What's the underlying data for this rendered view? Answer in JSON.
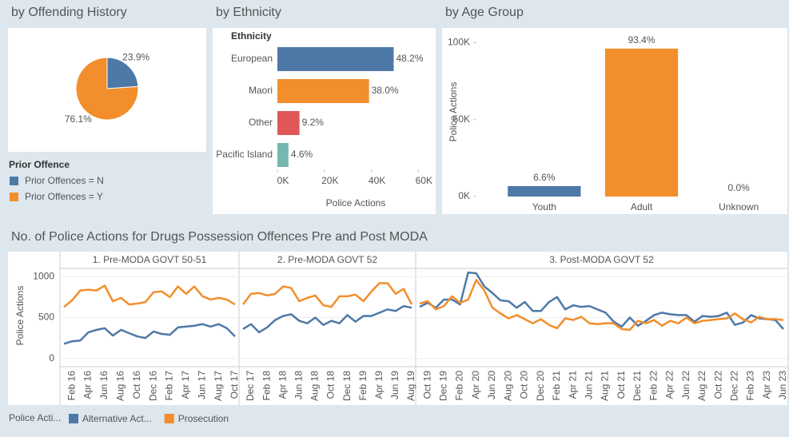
{
  "chart_data": [
    {
      "type": "pie",
      "title": "by Offending History",
      "legend_title": "Prior Offence",
      "categories": [
        "Prior Offences = N",
        "Prior Offences = Y"
      ],
      "values": [
        23.9,
        76.1
      ],
      "value_labels": [
        "23.9%",
        "76.1%"
      ],
      "colors": [
        "#4e79a7",
        "#f28e2b"
      ]
    },
    {
      "type": "bar",
      "orientation": "horizontal",
      "title": "by Ethnicity",
      "category_header": "Ethnicity",
      "xlabel": "Police Actions",
      "categories": [
        "European",
        "Maori",
        "Other",
        "Pacific Island"
      ],
      "values": [
        49500,
        39000,
        9400,
        4700
      ],
      "percents": [
        48.2,
        38.0,
        9.2,
        4.6
      ],
      "percent_labels": [
        "48.2%",
        "38.0%",
        "9.2%",
        "4.6%"
      ],
      "colors": [
        "#4e79a7",
        "#f28e2b",
        "#e15759",
        "#76b7b2"
      ],
      "xlim": [
        0,
        66000
      ],
      "xticks": [
        {
          "value": 0,
          "label": "0K"
        },
        {
          "value": 20000,
          "label": "20K"
        },
        {
          "value": 40000,
          "label": "40K"
        },
        {
          "value": 60000,
          "label": "60K"
        }
      ]
    },
    {
      "type": "bar",
      "orientation": "vertical",
      "title": "by Age Group",
      "ylabel": "Police Actions",
      "categories": [
        "Youth",
        "Adult",
        "Unknown"
      ],
      "values": [
        6800,
        96200,
        0
      ],
      "percents": [
        6.6,
        93.4,
        0.0
      ],
      "percent_labels": [
        "6.6%",
        "93.4%",
        "0.0%"
      ],
      "colors": [
        "#4e79a7",
        "#f28e2b",
        "#e15759"
      ],
      "ylim": [
        0,
        107000
      ],
      "yticks": [
        {
          "value": 0,
          "label": "0K"
        },
        {
          "value": 50000,
          "label": "50K"
        },
        {
          "value": 100000,
          "label": "100K"
        }
      ]
    },
    {
      "type": "line",
      "title": "No. of Police Actions for Drugs Possession Offences Pre and Post MODA",
      "ylabel": "Police Actions",
      "legend_title": "Police Acti...",
      "series": [
        {
          "name": "Alternative Act...",
          "color": "#4e79a7"
        },
        {
          "name": "Prosecution",
          "color": "#f28e2b"
        }
      ],
      "ylim": [
        -90,
        1090
      ],
      "yticks": [
        0,
        500,
        1000
      ],
      "grid": true,
      "panels": [
        {
          "title": "1. Pre-MODA GOVT 50-51",
          "categories": [
            null,
            "Feb 16",
            null,
            "Apr 16",
            null,
            "Jun 16",
            null,
            "Aug 16",
            null,
            "Oct 16",
            null,
            "Dec 16",
            null,
            "Feb 17",
            null,
            "Apr 17",
            null,
            "Jun 17",
            null,
            "Aug 17",
            null,
            "Oct 17"
          ],
          "series": [
            {
              "values": [
                180,
                210,
                220,
                320,
                350,
                370,
                280,
                350,
                310,
                270,
                250,
                330,
                300,
                290,
                380,
                390,
                400,
                420,
                390,
                420,
                370,
                270
              ]
            },
            {
              "values": [
                630,
                710,
                830,
                840,
                830,
                890,
                700,
                740,
                660,
                670,
                690,
                810,
                820,
                750,
                880,
                790,
                880,
                760,
                720,
                740,
                720,
                660
              ]
            }
          ]
        },
        {
          "title": "2. Pre-MODA GOVT 52",
          "categories": [
            null,
            "Dec 17",
            null,
            "Feb 18",
            null,
            "Apr 18",
            null,
            "Jun 18",
            null,
            "Aug 18",
            null,
            "Oct 18",
            null,
            "Dec 18",
            null,
            "Feb 19",
            null,
            "Apr 19",
            null,
            "Jun 19",
            null,
            "Aug 19"
          ],
          "series": [
            {
              "values": [
                360,
                420,
                320,
                380,
                470,
                520,
                540,
                460,
                430,
                500,
                410,
                460,
                430,
                530,
                450,
                520,
                520,
                560,
                600,
                580,
                640,
                620
              ]
            },
            {
              "values": [
                660,
                790,
                800,
                770,
                790,
                880,
                860,
                700,
                740,
                770,
                650,
                630,
                760,
                760,
                780,
                700,
                820,
                920,
                920,
                790,
                850,
                660
              ]
            }
          ]
        },
        {
          "title": "3. Post-MODA GOVT 52",
          "categories": [
            null,
            "Oct 19",
            null,
            "Dec 19",
            null,
            "Feb 20",
            null,
            "Apr 20",
            null,
            "Jun 20",
            null,
            "Aug 20",
            null,
            "Oct 20",
            null,
            "Dec 20",
            null,
            "Feb 21",
            null,
            "Apr 21",
            null,
            "Jun 21",
            null,
            "Aug 21",
            null,
            "Oct 21",
            null,
            "Dec 21",
            null,
            "Feb 22",
            null,
            "Apr 22",
            null,
            "Jun 22",
            null,
            "Aug 22",
            null,
            "Oct 22",
            null,
            "Dec 22",
            null,
            "Feb 23",
            null,
            "Apr 23",
            null,
            "Jun 23"
          ],
          "series": [
            {
              "values": [
                630,
                680,
                620,
                720,
                720,
                660,
                1050,
                1040,
                880,
                800,
                710,
                700,
                620,
                690,
                580,
                580,
                690,
                750,
                600,
                650,
                630,
                640,
                600,
                560,
                450,
                390,
                500,
                400,
                460,
                530,
                560,
                540,
                530,
                530,
                450,
                520,
                510,
                520,
                560,
                410,
                440,
                530,
                490,
                480,
                470,
                360
              ]
            },
            {
              "values": [
                670,
                700,
                600,
                640,
                760,
                680,
                720,
                960,
                830,
                620,
                550,
                490,
                530,
                480,
                430,
                480,
                410,
                370,
                490,
                470,
                510,
                430,
                420,
                430,
                430,
                360,
                350,
                460,
                430,
                470,
                400,
                460,
                430,
                500,
                430,
                460,
                470,
                480,
                490,
                550,
                480,
                440,
                510,
                480,
                480,
                470
              ]
            }
          ]
        }
      ]
    }
  ]
}
